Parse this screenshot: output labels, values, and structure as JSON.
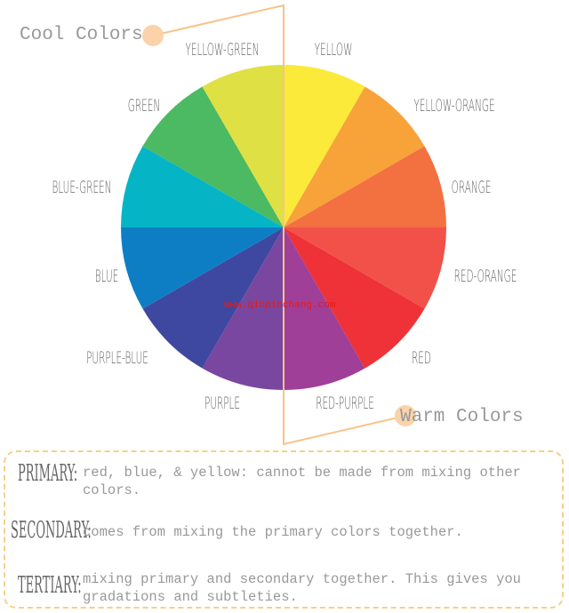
{
  "wheel": {
    "segments": [
      {
        "name": "YELLOW",
        "color": "#FBEA3A"
      },
      {
        "name": "YELLOW-ORANGE",
        "color": "#F8A23A"
      },
      {
        "name": "ORANGE",
        "color": "#F37041"
      },
      {
        "name": "RED-ORANGE",
        "color": "#F15149"
      },
      {
        "name": "RED",
        "color": "#EE3237"
      },
      {
        "name": "RED-PURPLE",
        "color": "#A03F98"
      },
      {
        "name": "PURPLE",
        "color": "#7A47A0"
      },
      {
        "name": "PURPLE-BLUE",
        "color": "#3F48A0"
      },
      {
        "name": "BLUE",
        "color": "#0E7EC4"
      },
      {
        "name": "BLUE-GREEN",
        "color": "#05B5C6"
      },
      {
        "name": "GREEN",
        "color": "#4BBA62"
      },
      {
        "name": "YELLOW-GREEN",
        "color": "#DFE044"
      }
    ]
  },
  "callouts": {
    "cool": "Cool Colors",
    "warm": "Warm Colors",
    "line_color": "#F8C38A"
  },
  "watermark": "www.qinpinchang.com",
  "legend": [
    {
      "term": "PRIMARY:",
      "desc": "red, blue, & yellow: cannot be made from mixing other colors."
    },
    {
      "term": "SECONDARY:",
      "desc": "comes from mixing the primary colors together."
    },
    {
      "term": "TERTIARY:",
      "desc": "mixing primary and secondary together. This gives you gradations and subtleties."
    }
  ]
}
